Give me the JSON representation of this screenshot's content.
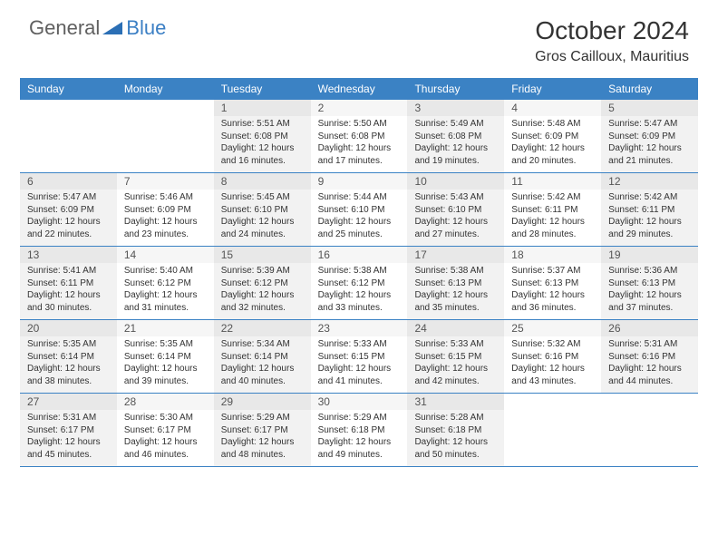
{
  "logo": {
    "text1": "General",
    "text2": "Blue",
    "shape_color": "#2b6fb5"
  },
  "header": {
    "month_title": "October 2024",
    "location": "Gros Cailloux, Mauritius"
  },
  "colors": {
    "header_bg": "#3b82c4",
    "row_border": "#3b82c4",
    "alt_cell_bg": "#f2f2f2",
    "daynum_bg_odd": "#e8e8e8",
    "daynum_bg_even": "#f6f6f6"
  },
  "day_names": [
    "Sunday",
    "Monday",
    "Tuesday",
    "Wednesday",
    "Thursday",
    "Friday",
    "Saturday"
  ],
  "weeks": [
    [
      {
        "day": "",
        "sunrise": "",
        "sunset": "",
        "daylight": ""
      },
      {
        "day": "",
        "sunrise": "",
        "sunset": "",
        "daylight": ""
      },
      {
        "day": "1",
        "sunrise": "Sunrise: 5:51 AM",
        "sunset": "Sunset: 6:08 PM",
        "daylight": "Daylight: 12 hours and 16 minutes."
      },
      {
        "day": "2",
        "sunrise": "Sunrise: 5:50 AM",
        "sunset": "Sunset: 6:08 PM",
        "daylight": "Daylight: 12 hours and 17 minutes."
      },
      {
        "day": "3",
        "sunrise": "Sunrise: 5:49 AM",
        "sunset": "Sunset: 6:08 PM",
        "daylight": "Daylight: 12 hours and 19 minutes."
      },
      {
        "day": "4",
        "sunrise": "Sunrise: 5:48 AM",
        "sunset": "Sunset: 6:09 PM",
        "daylight": "Daylight: 12 hours and 20 minutes."
      },
      {
        "day": "5",
        "sunrise": "Sunrise: 5:47 AM",
        "sunset": "Sunset: 6:09 PM",
        "daylight": "Daylight: 12 hours and 21 minutes."
      }
    ],
    [
      {
        "day": "6",
        "sunrise": "Sunrise: 5:47 AM",
        "sunset": "Sunset: 6:09 PM",
        "daylight": "Daylight: 12 hours and 22 minutes."
      },
      {
        "day": "7",
        "sunrise": "Sunrise: 5:46 AM",
        "sunset": "Sunset: 6:09 PM",
        "daylight": "Daylight: 12 hours and 23 minutes."
      },
      {
        "day": "8",
        "sunrise": "Sunrise: 5:45 AM",
        "sunset": "Sunset: 6:10 PM",
        "daylight": "Daylight: 12 hours and 24 minutes."
      },
      {
        "day": "9",
        "sunrise": "Sunrise: 5:44 AM",
        "sunset": "Sunset: 6:10 PM",
        "daylight": "Daylight: 12 hours and 25 minutes."
      },
      {
        "day": "10",
        "sunrise": "Sunrise: 5:43 AM",
        "sunset": "Sunset: 6:10 PM",
        "daylight": "Daylight: 12 hours and 27 minutes."
      },
      {
        "day": "11",
        "sunrise": "Sunrise: 5:42 AM",
        "sunset": "Sunset: 6:11 PM",
        "daylight": "Daylight: 12 hours and 28 minutes."
      },
      {
        "day": "12",
        "sunrise": "Sunrise: 5:42 AM",
        "sunset": "Sunset: 6:11 PM",
        "daylight": "Daylight: 12 hours and 29 minutes."
      }
    ],
    [
      {
        "day": "13",
        "sunrise": "Sunrise: 5:41 AM",
        "sunset": "Sunset: 6:11 PM",
        "daylight": "Daylight: 12 hours and 30 minutes."
      },
      {
        "day": "14",
        "sunrise": "Sunrise: 5:40 AM",
        "sunset": "Sunset: 6:12 PM",
        "daylight": "Daylight: 12 hours and 31 minutes."
      },
      {
        "day": "15",
        "sunrise": "Sunrise: 5:39 AM",
        "sunset": "Sunset: 6:12 PM",
        "daylight": "Daylight: 12 hours and 32 minutes."
      },
      {
        "day": "16",
        "sunrise": "Sunrise: 5:38 AM",
        "sunset": "Sunset: 6:12 PM",
        "daylight": "Daylight: 12 hours and 33 minutes."
      },
      {
        "day": "17",
        "sunrise": "Sunrise: 5:38 AM",
        "sunset": "Sunset: 6:13 PM",
        "daylight": "Daylight: 12 hours and 35 minutes."
      },
      {
        "day": "18",
        "sunrise": "Sunrise: 5:37 AM",
        "sunset": "Sunset: 6:13 PM",
        "daylight": "Daylight: 12 hours and 36 minutes."
      },
      {
        "day": "19",
        "sunrise": "Sunrise: 5:36 AM",
        "sunset": "Sunset: 6:13 PM",
        "daylight": "Daylight: 12 hours and 37 minutes."
      }
    ],
    [
      {
        "day": "20",
        "sunrise": "Sunrise: 5:35 AM",
        "sunset": "Sunset: 6:14 PM",
        "daylight": "Daylight: 12 hours and 38 minutes."
      },
      {
        "day": "21",
        "sunrise": "Sunrise: 5:35 AM",
        "sunset": "Sunset: 6:14 PM",
        "daylight": "Daylight: 12 hours and 39 minutes."
      },
      {
        "day": "22",
        "sunrise": "Sunrise: 5:34 AM",
        "sunset": "Sunset: 6:14 PM",
        "daylight": "Daylight: 12 hours and 40 minutes."
      },
      {
        "day": "23",
        "sunrise": "Sunrise: 5:33 AM",
        "sunset": "Sunset: 6:15 PM",
        "daylight": "Daylight: 12 hours and 41 minutes."
      },
      {
        "day": "24",
        "sunrise": "Sunrise: 5:33 AM",
        "sunset": "Sunset: 6:15 PM",
        "daylight": "Daylight: 12 hours and 42 minutes."
      },
      {
        "day": "25",
        "sunrise": "Sunrise: 5:32 AM",
        "sunset": "Sunset: 6:16 PM",
        "daylight": "Daylight: 12 hours and 43 minutes."
      },
      {
        "day": "26",
        "sunrise": "Sunrise: 5:31 AM",
        "sunset": "Sunset: 6:16 PM",
        "daylight": "Daylight: 12 hours and 44 minutes."
      }
    ],
    [
      {
        "day": "27",
        "sunrise": "Sunrise: 5:31 AM",
        "sunset": "Sunset: 6:17 PM",
        "daylight": "Daylight: 12 hours and 45 minutes."
      },
      {
        "day": "28",
        "sunrise": "Sunrise: 5:30 AM",
        "sunset": "Sunset: 6:17 PM",
        "daylight": "Daylight: 12 hours and 46 minutes."
      },
      {
        "day": "29",
        "sunrise": "Sunrise: 5:29 AM",
        "sunset": "Sunset: 6:17 PM",
        "daylight": "Daylight: 12 hours and 48 minutes."
      },
      {
        "day": "30",
        "sunrise": "Sunrise: 5:29 AM",
        "sunset": "Sunset: 6:18 PM",
        "daylight": "Daylight: 12 hours and 49 minutes."
      },
      {
        "day": "31",
        "sunrise": "Sunrise: 5:28 AM",
        "sunset": "Sunset: 6:18 PM",
        "daylight": "Daylight: 12 hours and 50 minutes."
      },
      {
        "day": "",
        "sunrise": "",
        "sunset": "",
        "daylight": ""
      },
      {
        "day": "",
        "sunrise": "",
        "sunset": "",
        "daylight": ""
      }
    ]
  ]
}
